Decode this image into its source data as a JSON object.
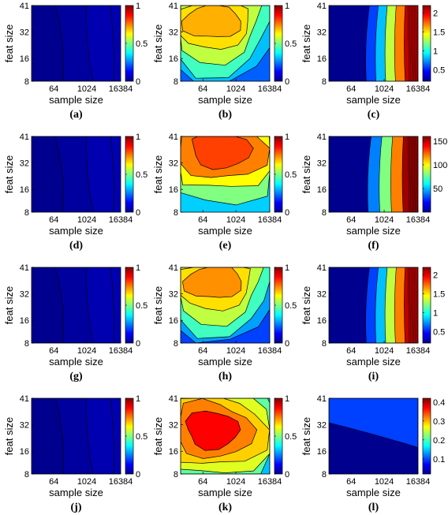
{
  "figure": {
    "colors": {
      "jet": [
        "#00008f",
        "#0000ff",
        "#0080ff",
        "#00ffff",
        "#80ff80",
        "#ffff00",
        "#ff8000",
        "#ff0000",
        "#800000"
      ],
      "contour_line": "#000000"
    },
    "axes_common": {
      "x_ticks": [
        "64",
        "1024",
        "16384"
      ],
      "y_ticks": [
        "8",
        "16",
        "32",
        "41"
      ],
      "xlabel": "sample size",
      "ylabel": "feat size"
    }
  },
  "chart_data": [
    {
      "label": "(a)",
      "type": "contour",
      "colorbar_ticks": [
        "0",
        "0.5",
        "1"
      ],
      "clim": [
        0,
        1
      ],
      "levels": [
        {
          "color": "#00008f",
          "v": 0.0
        },
        {
          "color": "#00009f",
          "v": 0.03
        },
        {
          "color": "#0000b0",
          "v": 0.06
        }
      ]
    },
    {
      "label": "(b)",
      "type": "contour",
      "colorbar_ticks": [
        "0",
        "0.5",
        "1"
      ],
      "clim": [
        0,
        1
      ],
      "levels": [
        {
          "color": "#0060ff",
          "v": 0.3
        },
        {
          "color": "#00c0ff",
          "v": 0.4
        },
        {
          "color": "#40ffc0",
          "v": 0.5
        },
        {
          "color": "#c0ff40",
          "v": 0.6
        },
        {
          "color": "#ffe000",
          "v": 0.7
        },
        {
          "color": "#ffb000",
          "v": 0.8
        }
      ]
    },
    {
      "label": "(c)",
      "type": "contour",
      "colorbar_ticks": [
        "0.5",
        "1",
        "1.5",
        "2"
      ],
      "clim": [
        0.2,
        2.2
      ],
      "levels": [
        {
          "color": "#00008f",
          "v": 0.3
        },
        {
          "color": "#0040ff",
          "v": 0.6
        },
        {
          "color": "#00c0ff",
          "v": 0.9
        },
        {
          "color": "#c0ff40",
          "v": 1.3
        },
        {
          "color": "#ff8000",
          "v": 1.7
        },
        {
          "color": "#c00000",
          "v": 2.1
        }
      ]
    },
    {
      "label": "(d)",
      "type": "contour",
      "colorbar_ticks": [
        "0",
        "0.5",
        "1"
      ],
      "clim": [
        0,
        1
      ],
      "levels": [
        {
          "color": "#00008f",
          "v": 0.0
        },
        {
          "color": "#00009f",
          "v": 0.03
        },
        {
          "color": "#0000b0",
          "v": 0.06
        }
      ]
    },
    {
      "label": "(e)",
      "type": "contour",
      "colorbar_ticks": [
        "0",
        "0.5",
        "1"
      ],
      "clim": [
        0,
        1
      ],
      "levels": [
        {
          "color": "#00d0ff",
          "v": 0.45
        },
        {
          "color": "#80ff80",
          "v": 0.55
        },
        {
          "color": "#ffff00",
          "v": 0.65
        },
        {
          "color": "#ff8000",
          "v": 0.8
        },
        {
          "color": "#ff4000",
          "v": 0.9
        }
      ]
    },
    {
      "label": "(f)",
      "type": "contour",
      "colorbar_ticks": [
        "50",
        "100",
        "150"
      ],
      "clim": [
        0,
        160
      ],
      "levels": [
        {
          "color": "#00008f",
          "v": 5
        },
        {
          "color": "#0080ff",
          "v": 40
        },
        {
          "color": "#80ff80",
          "v": 80
        },
        {
          "color": "#ff8000",
          "v": 120
        },
        {
          "color": "#a00000",
          "v": 155
        }
      ]
    },
    {
      "label": "(g)",
      "type": "contour",
      "colorbar_ticks": [
        "0",
        "0.5",
        "1"
      ],
      "clim": [
        0,
        1
      ],
      "levels": [
        {
          "color": "#00008f",
          "v": 0.0
        },
        {
          "color": "#00009f",
          "v": 0.03
        },
        {
          "color": "#0000b0",
          "v": 0.06
        }
      ]
    },
    {
      "label": "(h)",
      "type": "contour",
      "colorbar_ticks": [
        "0",
        "0.5",
        "1"
      ],
      "clim": [
        0,
        1
      ],
      "levels": [
        {
          "color": "#0040ff",
          "v": 0.25
        },
        {
          "color": "#00a0ff",
          "v": 0.35
        },
        {
          "color": "#40ffc0",
          "v": 0.5
        },
        {
          "color": "#c0ff40",
          "v": 0.6
        },
        {
          "color": "#ffe000",
          "v": 0.7
        },
        {
          "color": "#ff9000",
          "v": 0.8
        }
      ]
    },
    {
      "label": "(i)",
      "type": "contour",
      "colorbar_ticks": [
        "0.5",
        "1",
        "1.5",
        "2"
      ],
      "clim": [
        0.2,
        2.2
      ],
      "levels": [
        {
          "color": "#00008f",
          "v": 0.3
        },
        {
          "color": "#0040ff",
          "v": 0.6
        },
        {
          "color": "#00c0ff",
          "v": 0.9
        },
        {
          "color": "#c0ff40",
          "v": 1.3
        },
        {
          "color": "#ff8000",
          "v": 1.7
        },
        {
          "color": "#c00000",
          "v": 2.1
        }
      ]
    },
    {
      "label": "(j)",
      "type": "contour",
      "colorbar_ticks": [
        "0",
        "0.5",
        "1"
      ],
      "clim": [
        0,
        1
      ],
      "levels": [
        {
          "color": "#00008f",
          "v": 0.0
        },
        {
          "color": "#00009f",
          "v": 0.03
        },
        {
          "color": "#0000b0",
          "v": 0.06
        }
      ]
    },
    {
      "label": "(k)",
      "type": "contour",
      "colorbar_ticks": [
        "0",
        "0.5",
        "1"
      ],
      "clim": [
        0,
        1
      ],
      "levels": [
        {
          "color": "#00c0ff",
          "v": 0.4
        },
        {
          "color": "#60ffa0",
          "v": 0.5
        },
        {
          "color": "#e0ff20",
          "v": 0.6
        },
        {
          "color": "#ffd000",
          "v": 0.7
        },
        {
          "color": "#ff8000",
          "v": 0.8
        },
        {
          "color": "#ff0000",
          "v": 0.9
        }
      ]
    },
    {
      "label": "(l)",
      "type": "contour",
      "colorbar_ticks": [
        "0.1",
        "0.2",
        "0.3",
        "0.4"
      ],
      "clim": [
        0.02,
        0.42
      ],
      "levels": [
        {
          "color": "#00008f",
          "v": 0.05
        },
        {
          "color": "#0040ff",
          "v": 0.12
        },
        {
          "color": "#00c0ff",
          "v": 0.2
        },
        {
          "color": "#80ff80",
          "v": 0.28
        },
        {
          "color": "#ffff00",
          "v": 0.34
        },
        {
          "color": "#ff8000",
          "v": 0.4
        }
      ]
    }
  ]
}
